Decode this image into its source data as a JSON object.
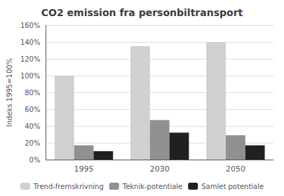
{
  "chart_data": {
    "type": "bar",
    "title": "CO2 emission fra personbiltransport",
    "y_label": "Indeks 1995=100%",
    "categories": [
      "1995",
      "2030",
      "2050"
    ],
    "series": [
      {
        "name": "Trend-fremskrivning",
        "color": "#d0d0d0",
        "values": [
          100,
          135,
          140
        ]
      },
      {
        "name": "Teknik-potentiale",
        "color": "#909090",
        "values": [
          17,
          47,
          29
        ]
      },
      {
        "name": "Samlet potentiale",
        "color": "#202020",
        "values": [
          10,
          32,
          17
        ]
      }
    ],
    "ylim": [
      0,
      160
    ],
    "yticks": [
      {
        "value": 0,
        "label": "0%"
      },
      {
        "value": 20,
        "label": "20%"
      },
      {
        "value": 40,
        "label": "40%"
      },
      {
        "value": 60,
        "label": "60%"
      },
      {
        "value": 80,
        "label": "80%"
      },
      {
        "value": 100,
        "label": "100%"
      },
      {
        "value": 120,
        "label": "120%"
      },
      {
        "value": 140,
        "label": "140%"
      },
      {
        "value": 160,
        "label": "160%"
      }
    ],
    "grid": true,
    "legend": "bottom"
  }
}
